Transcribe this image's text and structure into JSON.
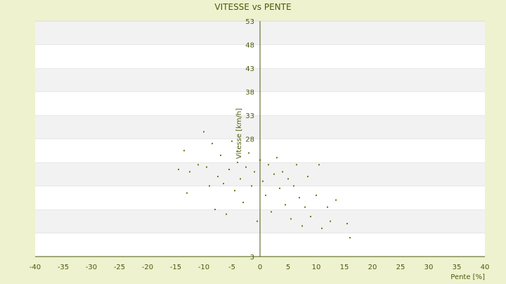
{
  "chart_data": {
    "type": "scatter",
    "title": "VITESSE vs PENTE",
    "xlabel": "Pente [%]",
    "ylabel": "Vitesse [km/h]",
    "xlim": [
      -40,
      40
    ],
    "ylim": [
      3,
      53
    ],
    "x_ticks": [
      -40,
      -35,
      -30,
      -25,
      -20,
      -15,
      -10,
      -5,
      0,
      5,
      10,
      15,
      20,
      25,
      30,
      35,
      40
    ],
    "y_ticks": [
      3,
      8,
      13,
      18,
      23,
      28,
      33,
      38,
      43,
      48,
      53
    ],
    "y_tick_labels_shown": [
      3,
      28,
      33,
      38,
      43,
      48,
      53
    ],
    "grid": "horizontal alternating bands",
    "legend": "none",
    "colors": {
      "background": "#eef2cf",
      "band_light": "#ffffff",
      "band_dark": "#f2f2f2",
      "axis": "#4a5a0a",
      "marker": "#6b7a12",
      "text": "#4a5a0a"
    },
    "points": [
      [
        -14.5,
        21.5
      ],
      [
        -13.0,
        16.5
      ],
      [
        -13.5,
        25.5
      ],
      [
        -12.5,
        21.0
      ],
      [
        -11.0,
        22.5
      ],
      [
        -10.0,
        29.5
      ],
      [
        -9.5,
        22.0
      ],
      [
        -9.0,
        18.0
      ],
      [
        -8.5,
        27.0
      ],
      [
        -8.0,
        13.0
      ],
      [
        -7.5,
        20.0
      ],
      [
        -7.0,
        24.5
      ],
      [
        -6.5,
        18.5
      ],
      [
        -6.0,
        12.0
      ],
      [
        -5.5,
        21.5
      ],
      [
        -5.0,
        27.5
      ],
      [
        -4.5,
        17.0
      ],
      [
        -4.0,
        23.0
      ],
      [
        -3.5,
        19.5
      ],
      [
        -3.0,
        14.5
      ],
      [
        -2.5,
        22.0
      ],
      [
        -2.0,
        25.0
      ],
      [
        -1.5,
        18.0
      ],
      [
        -1.0,
        21.0
      ],
      [
        -0.5,
        10.5
      ],
      [
        0.0,
        23.5
      ],
      [
        0.5,
        19.0
      ],
      [
        1.0,
        16.0
      ],
      [
        1.5,
        22.5
      ],
      [
        2.0,
        12.5
      ],
      [
        2.5,
        20.5
      ],
      [
        3.0,
        24.0
      ],
      [
        3.5,
        17.5
      ],
      [
        4.0,
        21.0
      ],
      [
        4.5,
        14.0
      ],
      [
        5.0,
        19.5
      ],
      [
        5.5,
        11.0
      ],
      [
        6.0,
        18.0
      ],
      [
        6.5,
        22.5
      ],
      [
        7.0,
        15.5
      ],
      [
        7.5,
        9.5
      ],
      [
        8.0,
        13.5
      ],
      [
        8.5,
        20.0
      ],
      [
        9.0,
        11.5
      ],
      [
        10.0,
        16.0
      ],
      [
        10.5,
        22.5
      ],
      [
        11.0,
        9.0
      ],
      [
        12.0,
        13.5
      ],
      [
        12.5,
        10.5
      ],
      [
        13.5,
        15.0
      ],
      [
        15.5,
        10.0
      ],
      [
        16.0,
        7.0
      ]
    ]
  }
}
